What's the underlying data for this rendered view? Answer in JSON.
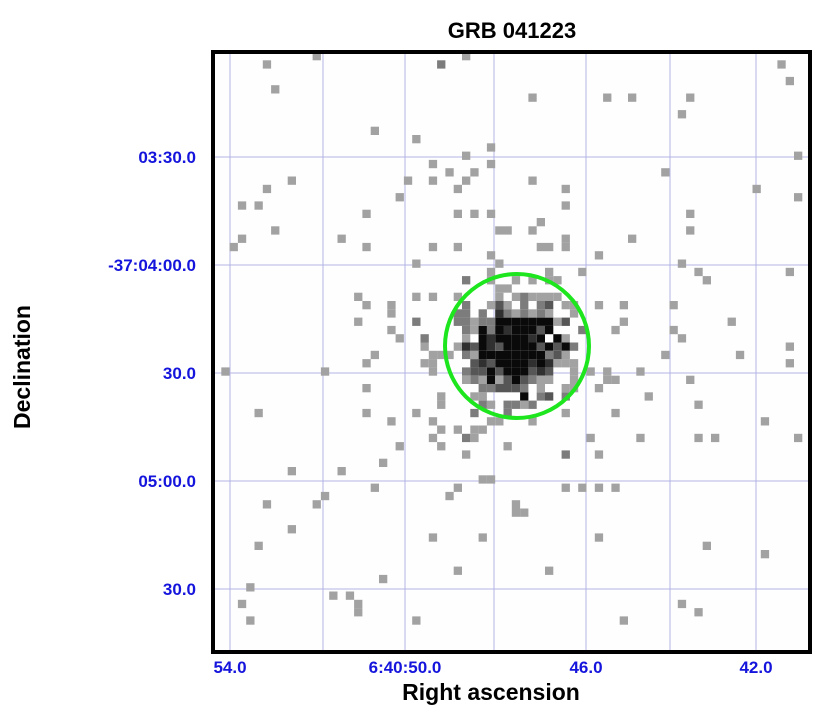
{
  "chart_data": {
    "type": "heatmap",
    "title": "GRB 041223",
    "xlabel": "Right ascension",
    "ylabel": "Declination",
    "x_tick_labels": [
      "54.0",
      "6:40:50.0",
      "46.0",
      "42.0"
    ],
    "y_tick_labels": [
      "03:30.0",
      "-37:04:00.0",
      "30.0",
      "05:00.0",
      "30.0"
    ],
    "grid": true,
    "colors": {
      "frame": "#000000",
      "title": "#000000",
      "tick_labels": "#1414dc",
      "grid": "#b4b4e6",
      "circle": "#1ee61e",
      "background": "#fefefe"
    },
    "source_region": {
      "shape": "circle",
      "color": "#1ee61e"
    }
  }
}
